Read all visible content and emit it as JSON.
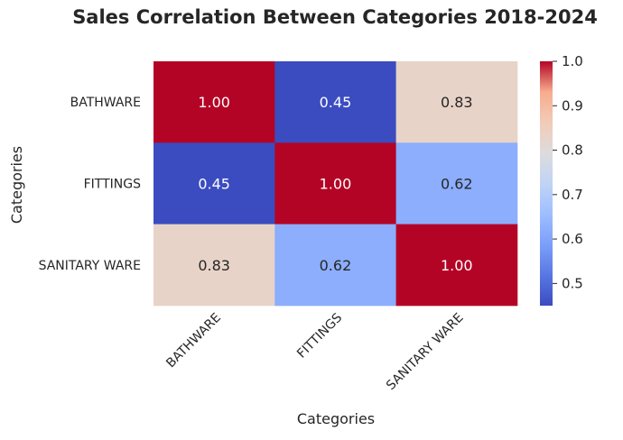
{
  "chart_data": {
    "type": "heatmap",
    "title": "Sales Correlation Between Categories 2018-2024",
    "xlabel": "Categories",
    "ylabel": "Categories",
    "x_categories": [
      "BATHWARE",
      "FITTINGS",
      "SANITARY WARE"
    ],
    "y_categories": [
      "BATHWARE",
      "FITTINGS",
      "SANITARY WARE"
    ],
    "values": [
      [
        1.0,
        0.45,
        0.83
      ],
      [
        0.45,
        1.0,
        0.62
      ],
      [
        0.83,
        0.62,
        1.0
      ]
    ],
    "value_format": "0.00",
    "colormap": "coolwarm",
    "color_range": [
      0.45,
      1.0
    ],
    "colorbar_ticks": [
      "0.5",
      "0.6",
      "0.7",
      "0.8",
      "0.9",
      "1.0"
    ],
    "grid": false
  }
}
